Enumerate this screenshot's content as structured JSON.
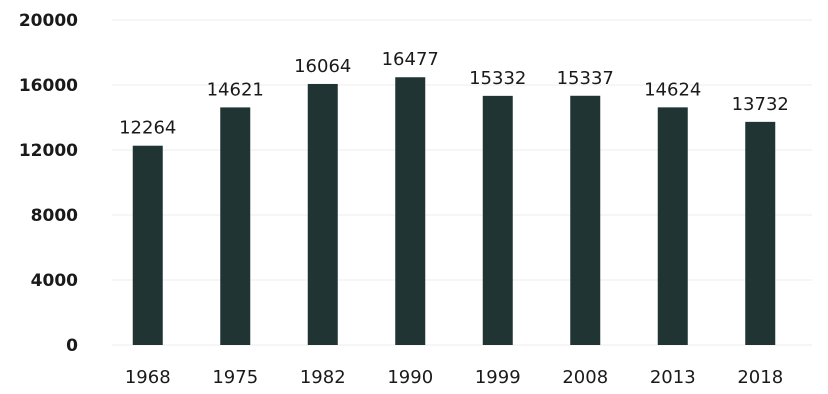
{
  "chart_data": {
    "type": "bar",
    "categories": [
      "1968",
      "1975",
      "1982",
      "1990",
      "1999",
      "2008",
      "2013",
      "2018"
    ],
    "values": [
      12264,
      14621,
      16064,
      16477,
      15332,
      15337,
      14624,
      13732
    ],
    "data_labels": [
      "12264",
      "14621",
      "16064",
      "16477",
      "15332",
      "15337",
      "14624",
      "13732"
    ],
    "yticks": [
      "0",
      "4000",
      "8000",
      "12000",
      "16000",
      "20000"
    ],
    "ytick_values": [
      0,
      4000,
      8000,
      12000,
      16000,
      20000
    ],
    "ylim": [
      0,
      20000
    ],
    "grid": true,
    "legend": "none",
    "colors": {
      "bar": "#1f3433",
      "text": "#1a1a1a",
      "grid": "#eeeeee"
    }
  }
}
